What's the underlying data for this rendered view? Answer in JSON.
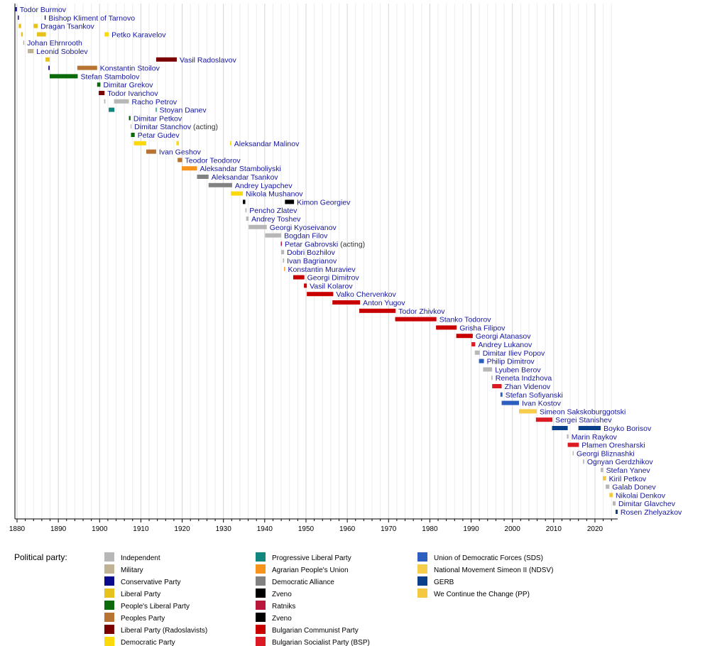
{
  "chart_data": {
    "type": "timeline",
    "xlim": [
      1880,
      2025.5
    ],
    "x_ticks": [
      1880,
      1890,
      1900,
      1910,
      1920,
      1930,
      1940,
      1950,
      1960,
      1970,
      1980,
      1990,
      2000,
      2010,
      2020
    ],
    "grid": "vertical every 2 years",
    "legend_title": "Political party:",
    "legend_placement": "bottom",
    "parties": [
      {
        "id": "ind",
        "label": "Independent",
        "color": "#b7b7b7"
      },
      {
        "id": "mil",
        "label": "Military",
        "color": "#c0b294"
      },
      {
        "id": "con",
        "label": "Conservative Party",
        "color": "#0a0a8c"
      },
      {
        "id": "lib",
        "label": "Liberal Party",
        "color": "#e8c21c"
      },
      {
        "id": "plp",
        "label": "People's Liberal Party",
        "color": "#0b6b0b"
      },
      {
        "id": "pp",
        "label": "Peoples Party",
        "color": "#b87333"
      },
      {
        "id": "rad",
        "label": "Liberal Party (Radoslavists)",
        "color": "#7a0000"
      },
      {
        "id": "dem",
        "label": "Democratic Party",
        "color": "#fcd90b"
      },
      {
        "id": "prl",
        "label": "Progressive Liberal Party",
        "color": "#12877e"
      },
      {
        "id": "agr",
        "label": "Agrarian People's Union",
        "color": "#f7941d"
      },
      {
        "id": "da",
        "label": "Democratic Alliance",
        "color": "#828282"
      },
      {
        "id": "zv1",
        "label": "Zveno",
        "color": "#000000"
      },
      {
        "id": "rat",
        "label": "Ratniks",
        "color": "#b8173b"
      },
      {
        "id": "zv2",
        "label": "Zveno",
        "color": "#000000"
      },
      {
        "id": "bcp",
        "label": "Bulgarian Communist Party",
        "color": "#c90000"
      },
      {
        "id": "bsp",
        "label": "Bulgarian Socialist Party (BSP)",
        "color": "#dc1a24"
      },
      {
        "id": "sds",
        "label": "Union of Democratic Forces (SDS)",
        "color": "#2c5fbf"
      },
      {
        "id": "ndsv",
        "label": "National Movement Simeon II (NDSV)",
        "color": "#f5cd4a"
      },
      {
        "id": "gerb",
        "label": "GERB",
        "color": "#0a3f8a"
      },
      {
        "id": "ppc",
        "label": "We Continue the Change (PP)",
        "color": "#f5c842"
      }
    ],
    "rows": [
      {
        "name": "Todor Burmov",
        "terms": [
          [
            1879.6,
            1879.95,
            "con"
          ]
        ]
      },
      {
        "name": "Bishop Kliment of Tarnovo",
        "terms": [
          [
            1880.2,
            1880.45,
            "con"
          ],
          [
            1886.7,
            1886.85,
            "con"
          ]
        ]
      },
      {
        "name": "Dragan Tsankov",
        "terms": [
          [
            1880.4,
            1881.0,
            "lib"
          ],
          [
            1884.0,
            1885.0,
            "lib"
          ]
        ]
      },
      {
        "name": "Petko Karavelov",
        "terms": [
          [
            1881.0,
            1881.4,
            "lib"
          ],
          [
            1884.8,
            1887.0,
            "lib"
          ],
          [
            1901.2,
            1902.2,
            "dem"
          ]
        ]
      },
      {
        "name": "Johan Ehrnrooth",
        "terms": [
          [
            1881.5,
            1881.75,
            "mil"
          ]
        ]
      },
      {
        "name": "Leonid Sobolev",
        "terms": [
          [
            1882.6,
            1884.0,
            "mil"
          ]
        ]
      },
      {
        "name": "Vasil Radoslavov",
        "terms": [
          [
            1886.9,
            1887.9,
            "lib"
          ],
          [
            1913.7,
            1918.7,
            "rad"
          ]
        ]
      },
      {
        "name": "Konstantin Stoilov",
        "terms": [
          [
            1887.6,
            1887.9,
            "con"
          ],
          [
            1894.6,
            1899.4,
            "pp"
          ]
        ]
      },
      {
        "name": "Stefan Stambolov",
        "terms": [
          [
            1887.9,
            1894.7,
            "plp"
          ]
        ]
      },
      {
        "name": "Dimitar Grekov",
        "terms": [
          [
            1899.4,
            1900.2,
            "plp"
          ]
        ]
      },
      {
        "name": "Todor Ivanchov",
        "terms": [
          [
            1899.8,
            1901.2,
            "rad"
          ]
        ]
      },
      {
        "name": "Racho Petrov",
        "terms": [
          [
            1901.1,
            1901.4,
            "ind"
          ],
          [
            1903.5,
            1907.1,
            "ind"
          ]
        ]
      },
      {
        "name": "Stoyan Danev",
        "terms": [
          [
            1902.2,
            1903.6,
            "prl"
          ],
          [
            1913.6,
            1913.8,
            "prl"
          ]
        ]
      },
      {
        "name": "Dimitar Petkov",
        "terms": [
          [
            1907.1,
            1907.5,
            "plp"
          ]
        ]
      },
      {
        "name": "Dimitar Stanchov",
        "suffix": " (acting)",
        "terms": [
          [
            1907.5,
            1907.7,
            "ind"
          ]
        ]
      },
      {
        "name": "Petar Gudev",
        "terms": [
          [
            1907.6,
            1908.5,
            "plp"
          ]
        ]
      },
      {
        "name": "Aleksandar Malinov",
        "terms": [
          [
            1908.3,
            1911.3,
            "dem"
          ],
          [
            1918.6,
            1919.2,
            "dem"
          ],
          [
            1931.6,
            1931.9,
            "dem"
          ]
        ]
      },
      {
        "name": "Ivan Geshov",
        "terms": [
          [
            1911.3,
            1913.7,
            "pp"
          ]
        ]
      },
      {
        "name": "Teodor Teodorov",
        "terms": [
          [
            1918.9,
            1920.0,
            "pp"
          ]
        ]
      },
      {
        "name": "Aleksandar Stamboliyski",
        "terms": [
          [
            1919.9,
            1923.6,
            "agr"
          ]
        ]
      },
      {
        "name": "Aleksandar Tsankov",
        "terms": [
          [
            1923.6,
            1926.4,
            "da"
          ]
        ]
      },
      {
        "name": "Andrey Lyapchev",
        "terms": [
          [
            1926.4,
            1932.1,
            "da"
          ]
        ]
      },
      {
        "name": "Nikola Mushanov",
        "terms": [
          [
            1931.8,
            1934.7,
            "dem"
          ]
        ]
      },
      {
        "name": "Kimon Georgiev",
        "terms": [
          [
            1934.7,
            1935.3,
            "zv1"
          ],
          [
            1944.9,
            1947.1,
            "zv2"
          ]
        ]
      },
      {
        "name": "Pencho Zlatev",
        "terms": [
          [
            1935.3,
            1935.6,
            "ind"
          ]
        ]
      },
      {
        "name": "Andrey Toshev",
        "terms": [
          [
            1935.5,
            1936.1,
            "ind"
          ]
        ]
      },
      {
        "name": "Georgi Kyoseivanov",
        "terms": [
          [
            1936.1,
            1940.5,
            "ind"
          ]
        ]
      },
      {
        "name": "Bogdan Filov",
        "terms": [
          [
            1940.1,
            1944.0,
            "ind"
          ]
        ]
      },
      {
        "name": "Petar Gabrovski",
        "suffix": " (acting)",
        "terms": [
          [
            1943.9,
            1944.15,
            "rat"
          ]
        ]
      },
      {
        "name": "Dobri Bozhilov",
        "terms": [
          [
            1944.0,
            1944.7,
            "ind"
          ]
        ]
      },
      {
        "name": "Ivan Bagrianov",
        "terms": [
          [
            1944.4,
            1944.7,
            "ind"
          ]
        ]
      },
      {
        "name": "Konstantin Muraviev",
        "terms": [
          [
            1944.7,
            1944.85,
            "agr"
          ]
        ]
      },
      {
        "name": "Georgi Dimitrov",
        "terms": [
          [
            1946.9,
            1949.6,
            "bcp"
          ]
        ]
      },
      {
        "name": "Vasil Kolarov",
        "terms": [
          [
            1949.5,
            1950.2,
            "bcp"
          ]
        ]
      },
      {
        "name": "Valko Chervenkov",
        "terms": [
          [
            1950.2,
            1956.6,
            "bcp"
          ]
        ]
      },
      {
        "name": "Anton Yugov",
        "terms": [
          [
            1956.4,
            1963.1,
            "bcp"
          ]
        ]
      },
      {
        "name": "Todor Zhivkov",
        "terms": [
          [
            1962.9,
            1971.7,
            "bcp"
          ]
        ]
      },
      {
        "name": "Stanko Todorov",
        "terms": [
          [
            1971.6,
            1981.6,
            "bcp"
          ]
        ]
      },
      {
        "name": "Grisha Filipov",
        "terms": [
          [
            1981.5,
            1986.5,
            "bcp"
          ]
        ]
      },
      {
        "name": "Georgi Atanasov",
        "terms": [
          [
            1986.4,
            1990.4,
            "bcp"
          ]
        ]
      },
      {
        "name": "Andrey Lukanov",
        "terms": [
          [
            1990.1,
            1991.0,
            "bsp"
          ]
        ]
      },
      {
        "name": "Dimitar Iliev Popov",
        "terms": [
          [
            1990.9,
            1992.1,
            "ind"
          ]
        ]
      },
      {
        "name": "Philip Dimitrov",
        "terms": [
          [
            1991.9,
            1993.1,
            "sds"
          ]
        ]
      },
      {
        "name": "Lyuben Berov",
        "terms": [
          [
            1992.9,
            1995.1,
            "ind"
          ]
        ]
      },
      {
        "name": "Reneta Indzhova",
        "terms": [
          [
            1994.9,
            1995.2,
            "ind"
          ]
        ]
      },
      {
        "name": "Zhan Videnov",
        "terms": [
          [
            1995.1,
            1997.4,
            "bsp"
          ]
        ]
      },
      {
        "name": "Stefan Sofiyanski",
        "terms": [
          [
            1997.1,
            1997.6,
            "sds"
          ]
        ]
      },
      {
        "name": "Ivan Kostov",
        "terms": [
          [
            1997.4,
            2001.6,
            "sds"
          ]
        ]
      },
      {
        "name": "Simeon Sakskoburggotski",
        "terms": [
          [
            2001.6,
            2005.9,
            "ndsv"
          ]
        ]
      },
      {
        "name": "Sergei Stanishev",
        "terms": [
          [
            2005.7,
            2009.7,
            "bsp"
          ]
        ]
      },
      {
        "name": "Boyko Borisov",
        "terms": [
          [
            2009.6,
            2013.4,
            "gerb"
          ],
          [
            2016.0,
            2021.4,
            "gerb"
          ]
        ]
      },
      {
        "name": "Marin Raykov",
        "terms": [
          [
            2013.2,
            2013.6,
            "ind"
          ]
        ]
      },
      {
        "name": "Plamen Oresharski",
        "terms": [
          [
            2013.4,
            2016.1,
            "bsp"
          ]
        ]
      },
      {
        "name": "Georgi Bliznashki",
        "terms": [
          [
            2014.6,
            2014.85,
            "ind"
          ]
        ]
      },
      {
        "name": "Ognyan Gerdzhikov",
        "terms": [
          [
            2017.1,
            2017.4,
            "ind"
          ]
        ]
      },
      {
        "name": "Stefan Yanev",
        "terms": [
          [
            2021.4,
            2022.0,
            "ind"
          ]
        ]
      },
      {
        "name": "Kiril Petkov",
        "terms": [
          [
            2021.9,
            2022.7,
            "ppc"
          ]
        ]
      },
      {
        "name": "Galab Donev",
        "terms": [
          [
            2022.6,
            2023.5,
            "ind"
          ]
        ]
      },
      {
        "name": "Nikolai Denkov",
        "terms": [
          [
            2023.5,
            2024.3,
            "ppc"
          ]
        ]
      },
      {
        "name": "Dimitar Glavchev",
        "terms": [
          [
            2024.3,
            2025.0,
            "ind"
          ]
        ]
      },
      {
        "name": "Rosen Zhelyazkov",
        "terms": [
          [
            2025.0,
            2025.5,
            "gerb"
          ]
        ]
      }
    ]
  }
}
